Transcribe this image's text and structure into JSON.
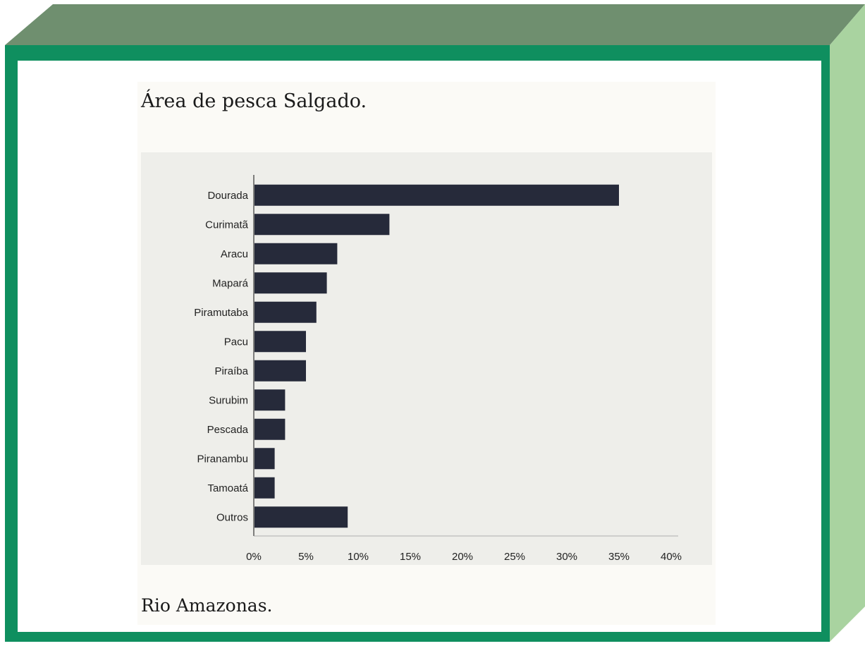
{
  "title": "Área de pesca Salgado.",
  "caption": "Rio Amazonas.",
  "colors": {
    "frame": "#0f8f5f",
    "bar": "#262a3a",
    "top_face": "#6f8f6f",
    "side_face": "#a9d3a0"
  },
  "chart_data": {
    "type": "bar",
    "orientation": "horizontal",
    "categories": [
      "Dourada",
      "Curimatã",
      "Aracu",
      "Mapará",
      "Piramutaba",
      "Pacu",
      "Piraíba",
      "Surubim",
      "Pescada",
      "Piranambu",
      "Tamoatá",
      "Outros"
    ],
    "values": [
      35,
      13,
      8,
      7,
      6,
      5,
      5,
      3,
      3,
      2,
      2,
      9
    ],
    "xlim": [
      0,
      40
    ],
    "xticks": [
      "0%",
      "5%",
      "10%",
      "15%",
      "20%",
      "25%",
      "30%",
      "35%",
      "40%"
    ],
    "grid": false
  }
}
